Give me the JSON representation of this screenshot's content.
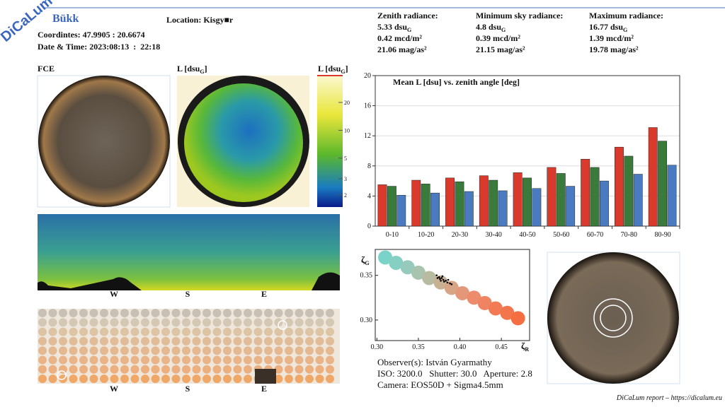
{
  "header": {
    "logo": "DiCaLum",
    "site": "Bükk",
    "location": "Location: Kisgy■r",
    "coordinates": "Coordintes: 47.9905 : 20.6674",
    "datetime": "Date & Time: 2023:08:13  :  22:18"
  },
  "radiance": [
    {
      "title": "Zenith radiance:",
      "dsu": "5.33 dsu",
      "dsu_sub": "G",
      "mcd": "0.42 mcd/m²",
      "mag": "21.06 mag/as²"
    },
    {
      "title": "Minimum sky radiance:",
      "dsu": "4.8 dsu",
      "dsu_sub": "G",
      "mcd": "0.39 mcd/m²",
      "mag": "21.15 mag/as²"
    },
    {
      "title": "Maximum radiance:",
      "dsu": "16.77 dsu",
      "dsu_sub": "G",
      "mcd": "1.39 mcd/m²",
      "mag": "19.78 mag/as²"
    }
  ],
  "panels": {
    "fce": "FCE",
    "lmap": {
      "text": "L [dsu",
      "sub": "G",
      "end": "]"
    }
  },
  "colorbar": {
    "label": {
      "text": "L [dsu",
      "sub": "G",
      "end": "]"
    },
    "ticks": [
      2,
      3,
      5,
      10,
      20
    ],
    "lim": [
      1.48,
      39
    ],
    "log": true
  },
  "panorama_labels": [
    "W",
    "S",
    "E"
  ],
  "chart_data": [
    {
      "type": "bar",
      "title": "Mean L [dsu] vs. zenith angle [deg]",
      "categories": [
        "0-10",
        "10-20",
        "20-30",
        "30-40",
        "40-50",
        "50-60",
        "60-70",
        "70-80",
        "80-90"
      ],
      "series": [
        {
          "color": "#d93a2b",
          "values": [
            5.5,
            6.1,
            6.4,
            6.7,
            7.1,
            7.8,
            8.9,
            10.5,
            13.1
          ]
        },
        {
          "color": "#3a7a3a",
          "values": [
            5.3,
            5.6,
            5.9,
            6.1,
            6.4,
            7.0,
            7.8,
            9.3,
            11.3
          ]
        },
        {
          "color": "#4a7bc0",
          "values": [
            4.1,
            4.4,
            4.6,
            4.7,
            5.0,
            5.3,
            6.0,
            6.9,
            8.1
          ]
        }
      ],
      "ylim": [
        0,
        20
      ],
      "yticks": [
        0,
        4,
        8,
        12,
        16,
        20
      ],
      "grid": true
    },
    {
      "type": "scatter",
      "xlabel": "ζ",
      "xlabel_sub": "R",
      "ylabel": "ζ",
      "ylabel_sub": "G",
      "xlim": [
        0.298,
        0.484
      ],
      "xticks": [
        {
          "value": 0.3,
          "label": "0.30"
        },
        0.35,
        {
          "value": 0.4,
          "label": "0.40"
        },
        0.45
      ],
      "ylim": [
        0.277,
        0.379
      ],
      "yticks": [
        {
          "value": 0.3,
          "label": "0.30"
        },
        0.35
      ],
      "series": [
        {
          "colors": [
            "#79d3c9",
            "#86cfc3",
            "#96cabc",
            "#a8c3ae",
            "#b8bb9f",
            "#c8b093",
            "#d8a486",
            "#e4987a",
            "#ec8c6c",
            "#f08462",
            "#f27b56",
            "#f3754c",
            "#f46e42"
          ],
          "x": [
            0.31,
            0.323,
            0.337,
            0.35,
            0.363,
            0.377,
            0.39,
            0.403,
            0.417,
            0.43,
            0.443,
            0.457,
            0.47
          ],
          "values": [
            0.37,
            0.364,
            0.359,
            0.353,
            0.347,
            0.342,
            0.336,
            0.33,
            0.325,
            0.319,
            0.313,
            0.308,
            0.302
          ]
        },
        {
          "color": "#000000",
          "x": [
            0.372,
            0.375,
            0.378,
            0.38,
            0.383,
            0.376,
            0.379,
            0.385,
            0.388,
            0.373,
            0.381,
            0.386,
            0.39,
            0.377
          ],
          "values": [
            0.35,
            0.348,
            0.347,
            0.345,
            0.344,
            0.346,
            0.349,
            0.342,
            0.341,
            0.347,
            0.343,
            0.345,
            0.34,
            0.344
          ]
        }
      ]
    }
  ],
  "observer": {
    "observer": "Observer(s): István Gyarmathy",
    "settings": "ISO: 3200.0   Shutter: 30.0   Aperture: 2.8",
    "camera": "Camera: EOS50D + Sigma4.5mm"
  },
  "footer": "DiCaLum report – https://dicalum.eu"
}
